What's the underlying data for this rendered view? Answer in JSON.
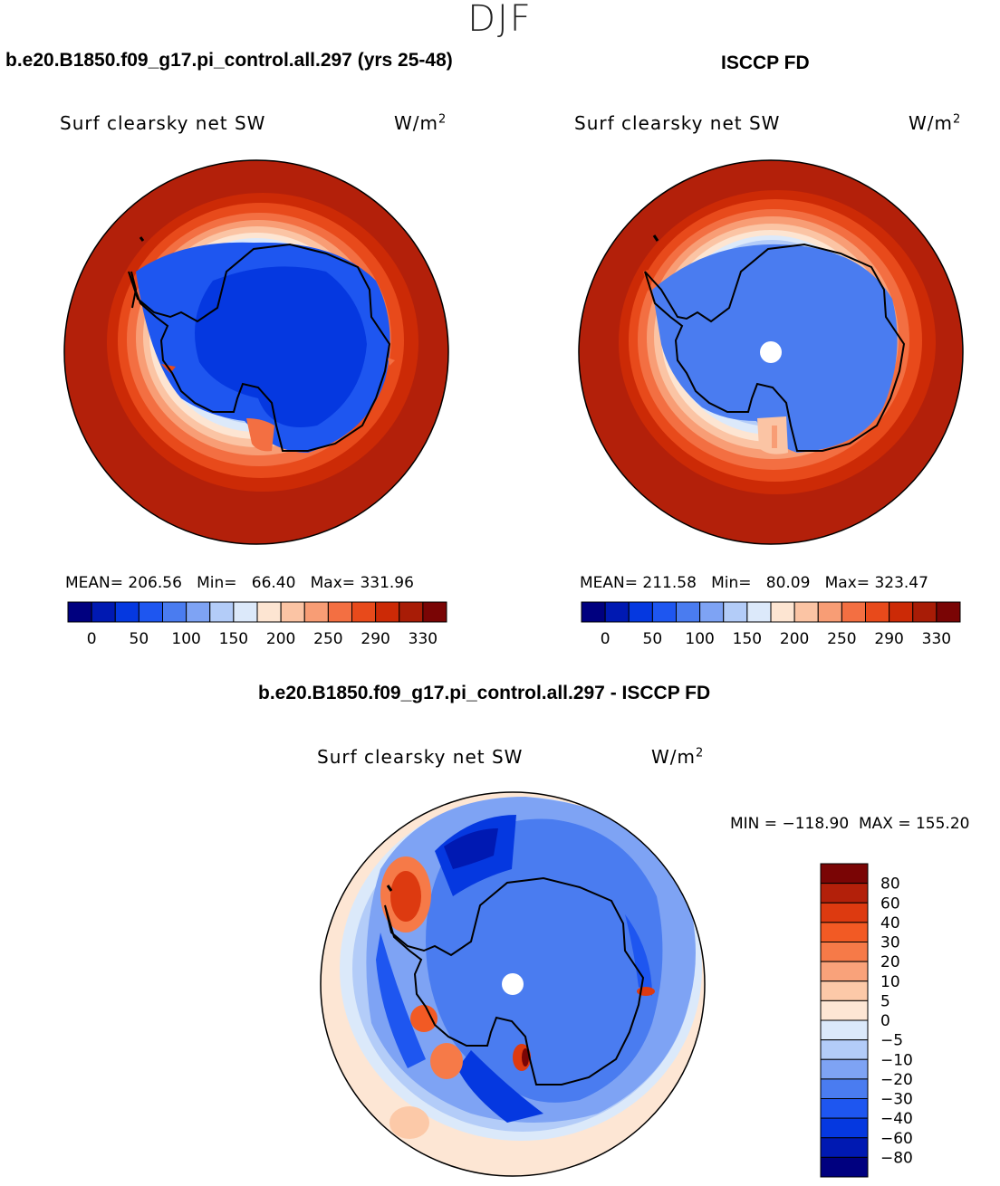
{
  "season": "DJF",
  "units_symbol": "W/m",
  "units_power": "2",
  "panels": [
    {
      "id": "model",
      "title": "b.e20.B1850.f09_g17.pi_control.all.297 (yrs 25-48)",
      "variable": "Surf clearsky net SW",
      "mean_label": "MEAN=",
      "mean": "206.56",
      "min_label": "Min=",
      "min": "66.40",
      "max_label": "Max=",
      "max": "331.96"
    },
    {
      "id": "obs",
      "title": "ISCCP FD",
      "variable": "Surf clearsky net SW",
      "mean_label": "MEAN=",
      "mean": "211.58",
      "min_label": "Min=",
      "min": "80.09",
      "max_label": "Max=",
      "max": "323.47"
    },
    {
      "id": "diff",
      "title": "b.e20.B1850.f09_g17.pi_control.all.297 - ISCCP FD",
      "variable": "Surf clearsky net SW",
      "range_text": "MIN = −118.90  MAX = 155.20"
    }
  ],
  "chart_data": [
    {
      "type": "heatmap",
      "title": "Surf clearsky net SW (model)",
      "projection": "south polar stereographic",
      "units": "W/m2",
      "colorbar_levels": [
        0,
        25,
        50,
        75,
        100,
        125,
        150,
        175,
        200,
        225,
        250,
        270,
        290,
        310,
        330
      ],
      "colorbar_ticks": [
        "0",
        "50",
        "100",
        "150",
        "200",
        "250",
        "290",
        "330"
      ],
      "colorbar_colors": [
        "#00007f",
        "#0019b2",
        "#0538e0",
        "#1e56f0",
        "#4a7cf0",
        "#7ea3f4",
        "#b3ccf8",
        "#dce9fa",
        "#fde5d2",
        "#fbc4a4",
        "#f89d75",
        "#f36f42",
        "#e84a1b",
        "#cc2a06",
        "#a81c06",
        "#7a0505"
      ],
      "stats": {
        "mean": 206.56,
        "min": 66.4,
        "max": 331.96
      }
    },
    {
      "type": "heatmap",
      "title": "Surf clearsky net SW (ISCCP FD)",
      "projection": "south polar stereographic",
      "units": "W/m2",
      "colorbar_levels": [
        0,
        25,
        50,
        75,
        100,
        125,
        150,
        175,
        200,
        225,
        250,
        270,
        290,
        310,
        330
      ],
      "colorbar_ticks": [
        "0",
        "50",
        "100",
        "150",
        "200",
        "250",
        "290",
        "330"
      ],
      "stats": {
        "mean": 211.58,
        "min": 80.09,
        "max": 323.47
      }
    },
    {
      "type": "heatmap",
      "title": "Surf clearsky net SW (model - ISCCP FD)",
      "projection": "south polar stereographic",
      "units": "W/m2",
      "colorbar_ticks": [
        "80",
        "60",
        "40",
        "30",
        "20",
        "10",
        "5",
        "0",
        "−5",
        "−10",
        "−20",
        "−30",
        "−40",
        "−60",
        "−80"
      ],
      "colorbar_colors": [
        "#7a0505",
        "#b3200a",
        "#dd3a10",
        "#f25a24",
        "#f67a48",
        "#f9a27a",
        "#fcc9a8",
        "#fde6d4",
        "#dbe9fa",
        "#b3ccf8",
        "#7ea3f4",
        "#4a7cf0",
        "#1e56f0",
        "#0538e0",
        "#0019b2",
        "#00007f"
      ],
      "stats": {
        "min": -118.9,
        "max": 155.2
      }
    }
  ]
}
